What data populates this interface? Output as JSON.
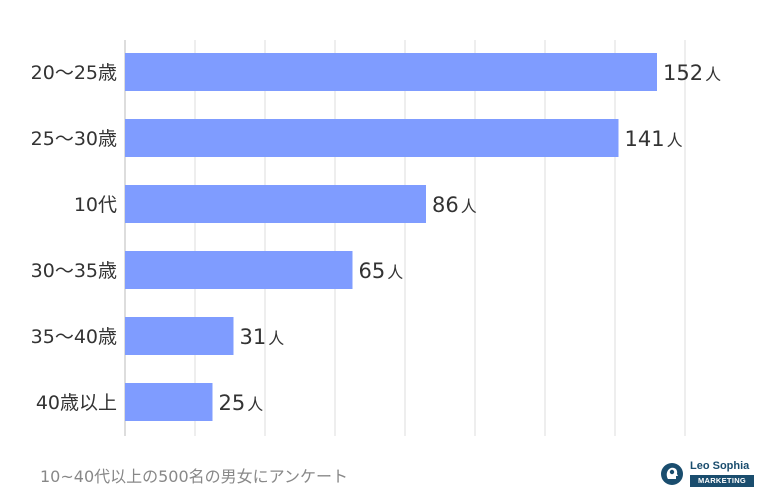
{
  "chart_data": {
    "type": "bar",
    "orientation": "horizontal",
    "categories": [
      "20〜25歳",
      "25〜30歳",
      "10代",
      "30〜35歳",
      "35〜40歳",
      "40歳以上"
    ],
    "values": [
      152,
      141,
      86,
      65,
      31,
      25
    ],
    "value_unit": "人",
    "xlim": [
      0,
      160
    ],
    "grid": true,
    "bar_color": "#7f9cff"
  },
  "footnote": "10~40代以上の500名の男女にアンケート",
  "logo": {
    "brand": "Leo Sophia",
    "sub": "MARKETING",
    "color": "#1a4d6e",
    "icon": "brain-head-icon"
  }
}
